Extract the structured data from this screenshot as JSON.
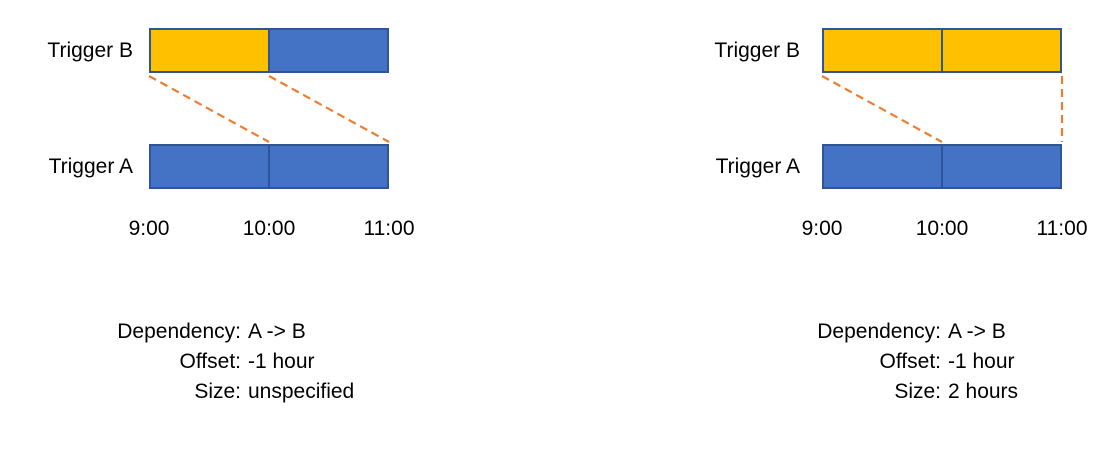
{
  "palette": {
    "bar_yellow": "#FFC000",
    "bar_blue": "#4472C4",
    "bar_border": "#2E5597",
    "connector_orange": "#ED7D31",
    "text": "#000000",
    "background": "#FFFFFF"
  },
  "diagrams": [
    {
      "id": "offset-size-unspecified",
      "trigger_b_label": "Trigger B",
      "trigger_a_label": "Trigger A",
      "bar_b": {
        "segments": [
          {
            "start": "9:00",
            "end": "10:00",
            "fill": "yellow"
          },
          {
            "start": "10:00",
            "end": "11:00",
            "fill": "blue"
          }
        ]
      },
      "bar_a": {
        "segments": [
          {
            "start": "9:00",
            "end": "10:00",
            "fill": "blue"
          },
          {
            "start": "10:00",
            "end": "11:00",
            "fill": "blue"
          }
        ]
      },
      "axis_ticks": [
        {
          "hour": 9,
          "label": "9:00"
        },
        {
          "hour": 10,
          "label": "10:00"
        },
        {
          "hour": 11,
          "label": "11:00"
        }
      ],
      "connectors": [
        {
          "from_hour": 9,
          "to_hour": 10
        },
        {
          "from_hour": 10,
          "to_hour": 11
        }
      ],
      "caption": [
        {
          "label": "Dependency:",
          "value": "A -> B"
        },
        {
          "label": "Offset:",
          "value": "-1 hour"
        },
        {
          "label": "Size:",
          "value": "unspecified"
        }
      ]
    },
    {
      "id": "offset-size-2-hours",
      "trigger_b_label": "Trigger B",
      "trigger_a_label": "Trigger A",
      "bar_b": {
        "segments": [
          {
            "start": "9:00",
            "end": "10:00",
            "fill": "yellow"
          },
          {
            "start": "10:00",
            "end": "11:00",
            "fill": "yellow"
          }
        ]
      },
      "bar_a": {
        "segments": [
          {
            "start": "9:00",
            "end": "10:00",
            "fill": "blue"
          },
          {
            "start": "10:00",
            "end": "11:00",
            "fill": "blue"
          }
        ]
      },
      "axis_ticks": [
        {
          "hour": 9,
          "label": "9:00"
        },
        {
          "hour": 10,
          "label": "10:00"
        },
        {
          "hour": 11,
          "label": "11:00"
        }
      ],
      "connectors": [
        {
          "from_hour": 9,
          "to_hour": 10
        },
        {
          "from_hour": 11,
          "to_hour": 11
        }
      ],
      "caption": [
        {
          "label": "Dependency:",
          "value": "A -> B"
        },
        {
          "label": "Offset:",
          "value": "-1 hour"
        },
        {
          "label": "Size:",
          "value": "2 hours"
        }
      ]
    }
  ]
}
